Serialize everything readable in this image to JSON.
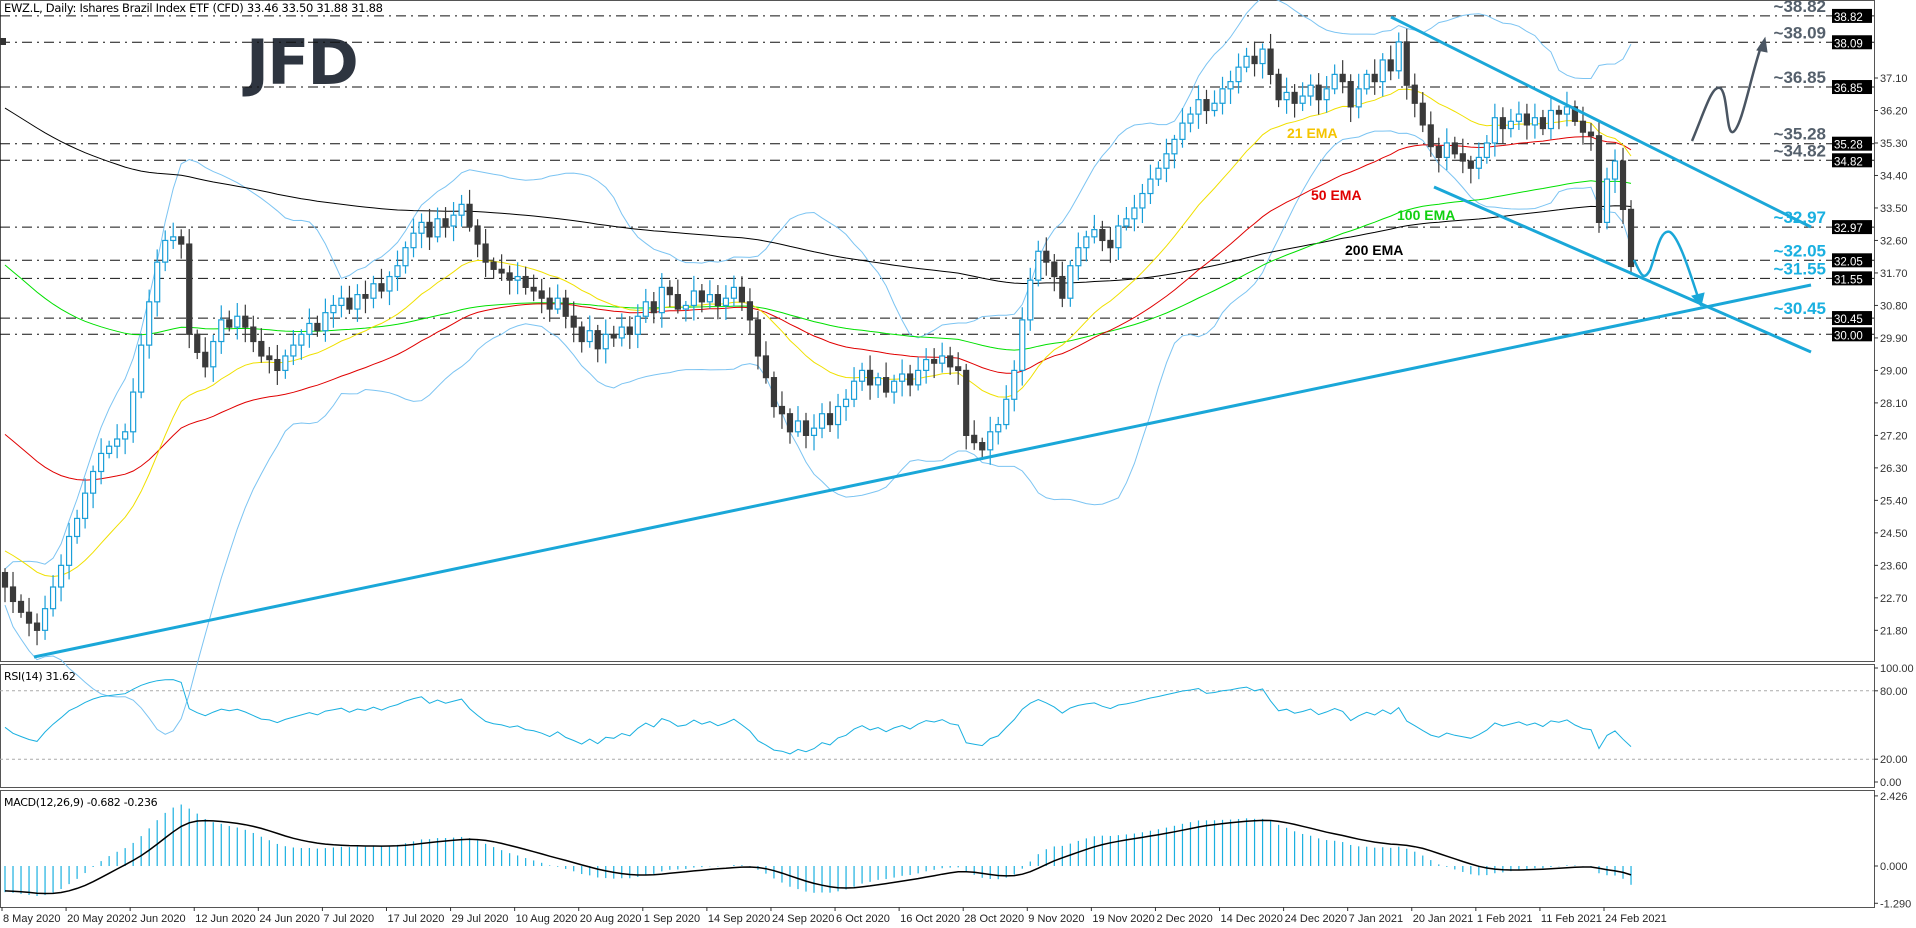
{
  "header": {
    "title": "EWZ.L, Daily:  Ishares Brazil Index ETF (CFD)  33.46 33.50 31.88 31.88"
  },
  "logo": {
    "text": "JFD",
    "color": "#2e3540"
  },
  "colors": {
    "bull_candle": "#1a9fd9",
    "bear_candle": "#3a3a3a",
    "ema21": "#f0e000",
    "ema50": "#e00000",
    "ema100": "#00e000",
    "ema200": "#000000",
    "bollinger": "#7cc4f2",
    "trendline": "#1aa7d8",
    "projection_up": "#4a5562",
    "projection_down": "#1aa7d8",
    "rsi": "#1ab0e0",
    "macd_hist": "#1ab0e0",
    "macd_signal": "#000000",
    "level_label_grey": "#55606c",
    "level_label_blue": "#1ab0e0"
  },
  "chart_data": [
    {
      "type": "candlestick",
      "title": "EWZ.L, Daily: Ishares Brazil Index ETF (CFD)",
      "last_bar": {
        "open": 33.46,
        "high": 33.5,
        "low": 31.88,
        "close": 31.88
      },
      "y_ticks": [
        "37.10",
        "36.20",
        "35.30",
        "34.40",
        "33.50",
        "32.60",
        "31.70",
        "30.80",
        "29.90",
        "29.00",
        "28.10",
        "27.20",
        "26.30",
        "25.40",
        "24.50",
        "23.60",
        "22.70",
        "21.80"
      ],
      "x_tick_labels": [
        "8 May 2020",
        "20 May 2020",
        "2 Jun 2020",
        "12 Jun 2020",
        "24 Jun 2020",
        "7 Jul 2020",
        "17 Jul 2020",
        "29 Jul 2020",
        "10 Aug 2020",
        "20 Aug 2020",
        "1 Sep 2020",
        "14 Sep 2020",
        "24 Sep 2020",
        "6 Oct 2020",
        "16 Oct 2020",
        "28 Oct 2020",
        "9 Nov 2020",
        "19 Nov 2020",
        "2 Dec 2020",
        "14 Dec 2020",
        "24 Dec 2020",
        "7 Jan 2021",
        "20 Jan 2021",
        "1 Feb 2021",
        "11 Feb 2021",
        "24 Feb 2021"
      ],
      "closes": [
        23.0,
        22.6,
        22.3,
        22.0,
        21.8,
        22.4,
        23.0,
        23.6,
        24.4,
        24.9,
        25.6,
        26.2,
        26.7,
        26.9,
        27.1,
        27.3,
        28.4,
        29.7,
        30.9,
        32.0,
        32.6,
        32.7,
        32.5,
        30.0,
        29.5,
        29.1,
        29.8,
        30.4,
        30.2,
        30.5,
        30.2,
        29.8,
        29.4,
        29.3,
        29.0,
        29.4,
        29.7,
        30.0,
        30.3,
        30.1,
        30.6,
        30.8,
        31.0,
        30.7,
        31.1,
        31.0,
        31.4,
        31.2,
        31.6,
        31.9,
        32.4,
        32.8,
        33.1,
        32.7,
        33.2,
        33.0,
        33.3,
        33.6,
        33.0,
        32.5,
        32.0,
        31.8,
        31.7,
        31.5,
        31.6,
        31.3,
        31.2,
        31.0,
        30.7,
        31.0,
        30.5,
        30.2,
        29.8,
        30.1,
        29.6,
        30.0,
        29.9,
        30.2,
        30.0,
        30.5,
        30.9,
        30.6,
        31.3,
        31.1,
        30.7,
        30.8,
        31.2,
        30.9,
        31.1,
        30.8,
        31.0,
        31.3,
        30.9,
        30.4,
        29.4,
        28.8,
        28.0,
        27.8,
        27.3,
        27.6,
        27.2,
        27.4,
        27.8,
        27.5,
        28.0,
        28.2,
        28.7,
        29.0,
        28.6,
        28.8,
        28.4,
        28.7,
        28.9,
        28.6,
        29.0,
        29.3,
        29.2,
        29.4,
        29.1,
        29.0,
        27.2,
        27.0,
        26.8,
        27.3,
        27.5,
        28.2,
        29.0,
        30.4,
        31.5,
        32.3,
        32.0,
        31.6,
        31.0,
        31.9,
        32.4,
        32.7,
        32.9,
        32.6,
        32.4,
        33.0,
        33.2,
        33.5,
        33.9,
        34.3,
        34.6,
        35.0,
        35.4,
        35.85,
        36.1,
        36.5,
        36.2,
        36.4,
        36.8,
        37.0,
        37.4,
        37.7,
        37.5,
        37.9,
        37.2,
        36.5,
        36.7,
        36.4,
        36.6,
        36.9,
        36.5,
        36.8,
        37.2,
        37.0,
        36.3,
        36.8,
        37.2,
        37.0,
        37.6,
        37.3,
        38.1,
        36.9,
        36.4,
        35.8,
        35.2,
        34.9,
        35.3,
        35.0,
        34.8,
        34.6,
        34.9,
        35.3,
        36.0,
        35.7,
        35.9,
        36.1,
        35.8,
        36.0,
        35.7,
        36.2,
        36.1,
        36.3,
        35.9,
        35.6,
        35.5,
        33.1,
        34.3,
        34.8,
        33.46,
        31.88
      ],
      "overlays": [
        "21 EMA",
        "50 EMA",
        "100 EMA",
        "200 EMA",
        "Bollinger Bands"
      ],
      "ema_labels": {
        "ema21": "21 EMA",
        "ema50": "50 EMA",
        "ema100": "100 EMA",
        "ema200": "200 EMA"
      },
      "levels": [
        {
          "value": 38.82,
          "label": "~38.82",
          "tag": "38.82",
          "tone": "grey"
        },
        {
          "value": 38.09,
          "label": "~38.09",
          "tag": "38.09",
          "tone": "grey"
        },
        {
          "value": 36.85,
          "label": "~36.85",
          "tag": "36.85",
          "tone": "grey"
        },
        {
          "value": 35.28,
          "label": "~35.28",
          "tag": "35.28",
          "tone": "grey"
        },
        {
          "value": 34.82,
          "label": "~34.82",
          "tag": "34.82",
          "tone": "grey"
        },
        {
          "value": 32.97,
          "label": "~32.97",
          "tag": "32.97",
          "tone": "blue"
        },
        {
          "value": 32.05,
          "label": "~32.05",
          "tag": "32.05",
          "tone": "blue"
        },
        {
          "value": 31.55,
          "label": "~31.55",
          "tag": "31.55",
          "tone": "blue"
        },
        {
          "value": 30.45,
          "label": "~30.45",
          "tag": "30.45",
          "tone": "blue"
        },
        {
          "value": 30.0,
          "label": "",
          "tag": "30.00",
          "tone": "none"
        }
      ],
      "ylim": [
        21.0,
        39.2
      ],
      "grid": false
    },
    {
      "type": "line",
      "title": "RSI(14) 31.62",
      "y_ticks": [
        "100.00",
        "80.00",
        "20.00",
        "0.00"
      ],
      "levels": [
        80,
        20
      ],
      "ylim": [
        0,
        100
      ]
    },
    {
      "type": "bar",
      "title": "MACD(12,26,9) -0.682 -0.236",
      "y_ticks": [
        "2.426",
        "0.000",
        "-1.290"
      ],
      "ylim": [
        -1.29,
        2.426
      ]
    }
  ]
}
